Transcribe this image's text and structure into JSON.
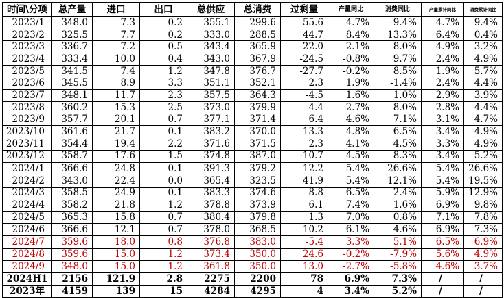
{
  "headers": [
    "时间\\分项",
    "总产量",
    "进口",
    "出口",
    "总供应",
    "总消费",
    "过剩量",
    "产量同比",
    "消费同比",
    "产量累计同比",
    "消费累计同比"
  ],
  "rows": [
    [
      "2023/1",
      "348.0",
      "7.3",
      "0.2",
      "355.1",
      "299.6",
      "55.6",
      "4.7%",
      "-9.4%",
      "4.7%",
      "-9.4%"
    ],
    [
      "2023/2",
      "325.5",
      "7.7",
      "0.2",
      "333.0",
      "288.5",
      "44.7",
      "8.4%",
      "13.3%",
      "6.4%",
      "0.4%"
    ],
    [
      "2023/3",
      "336.7",
      "7.2",
      "0.5",
      "343.4",
      "365.9",
      "-22.0",
      "2.1%",
      "8.0%",
      "4.9%",
      "3.2%"
    ],
    [
      "2023/4",
      "333.4",
      "10.0",
      "0.4",
      "343.0",
      "367.9",
      "-24.5",
      "-0.8%",
      "9.7%",
      "2.4%",
      "4.9%"
    ],
    [
      "2023/5",
      "341.5",
      "7.4",
      "1.2",
      "347.8",
      "376.7",
      "-27.7",
      "-0.2%",
      "8.5%",
      "1.9%",
      "5.7%"
    ],
    [
      "2023/6",
      "345.5",
      "8.9",
      "3.3",
      "351.1",
      "352.1",
      "2.3",
      "1.9%",
      "-1.4%",
      "2.4%",
      "4.4%"
    ],
    [
      "2023/7",
      "348.1",
      "11.7",
      "2.3",
      "357.5",
      "364.3",
      "-4.5",
      "1.6%",
      "1.0%",
      "2.9%",
      "3.9%"
    ],
    [
      "2023/8",
      "360.2",
      "15.3",
      "2.5",
      "373.0",
      "379.9",
      "-4.4",
      "2.7%",
      "8.0%",
      "2.8%",
      "4.4%"
    ],
    [
      "2023/9",
      "357.7",
      "20.1",
      "0.7",
      "377.1",
      "371.4",
      "6.4",
      "4.6%",
      "7.1%",
      "3.1%",
      "4.7%"
    ],
    [
      "2023/10",
      "361.6",
      "21.7",
      "0.1",
      "383.2",
      "370.0",
      "13.3",
      "4.8%",
      "6.5%",
      "3.4%",
      "4.9%"
    ],
    [
      "2023/11",
      "354.4",
      "19.4",
      "2.2",
      "371.6",
      "371.5",
      "2.3",
      "4.1%",
      "4.5%",
      "3.3%",
      "4.9%"
    ],
    [
      "2023/12",
      "358.7",
      "17.6",
      "1.5",
      "374.8",
      "387.0",
      "-10.7",
      "4.5%",
      "8.3%",
      "3.4%",
      "5.2%"
    ],
    [
      "2024/1",
      "366.6",
      "24.8",
      "0.1",
      "391.3",
      "379.2",
      "12.2",
      "5.4%",
      "26.6%",
      "5.4%",
      "26.6%"
    ],
    [
      "2024/2",
      "343.0",
      "22.4",
      "0.0",
      "365.4",
      "323.5",
      "41.9",
      "5.4%",
      "12.1%",
      "5.4%",
      "19.5%"
    ],
    [
      "2024/3",
      "358.5",
      "24.9",
      "0.1",
      "383.3",
      "374.6",
      "8.8",
      "6.5%",
      "2.4%",
      "5.9%",
      "12.9%"
    ],
    [
      "2024/4",
      "358.2",
      "21.8",
      "1.2",
      "378.8",
      "373.9",
      "6.1",
      "7.4%",
      "1.6%",
      "6.9%",
      "9.8%"
    ],
    [
      "2024/5",
      "365.3",
      "15.8",
      "0.7",
      "380.4",
      "379.8",
      "1.3",
      "7.0%",
      "0.8%",
      "7.1%",
      "7.8%"
    ],
    [
      "2024/6",
      "366.6",
      "12.1",
      "0.7",
      "378.0",
      "368.5",
      "10.2",
      "6.1%",
      "4.6%",
      "6.9%",
      "7.3%"
    ],
    [
      "2024/7",
      "359.6",
      "18.0",
      "0.8",
      "376.8",
      "383.0",
      "-5.4",
      "3.3%",
      "5.1%",
      "6.5%",
      "6.9%"
    ],
    [
      "2024/8",
      "359.6",
      "15.0",
      "1.2",
      "373.4",
      "350.0",
      "24.6",
      "-0.2%",
      "-7.9%",
      "5.6%",
      "4.9%"
    ],
    [
      "2024/9",
      "348.0",
      "15.0",
      "1.2",
      "361.8",
      "350.0",
      "13.0",
      "-2.7%",
      "-5.8%",
      "4.6%",
      "3.7%"
    ],
    [
      "2024H1",
      "2156",
      "121.9",
      "2.8",
      "2275",
      "2200",
      "78",
      "6.9%",
      "7.3%",
      "/",
      "/"
    ],
    [
      "2023年",
      "4159",
      "139",
      "15",
      "4284",
      "4295",
      "4",
      "3.4%",
      "5.2%",
      "/",
      "/"
    ]
  ],
  "colors": {
    "forecast_text": "#c00000"
  }
}
